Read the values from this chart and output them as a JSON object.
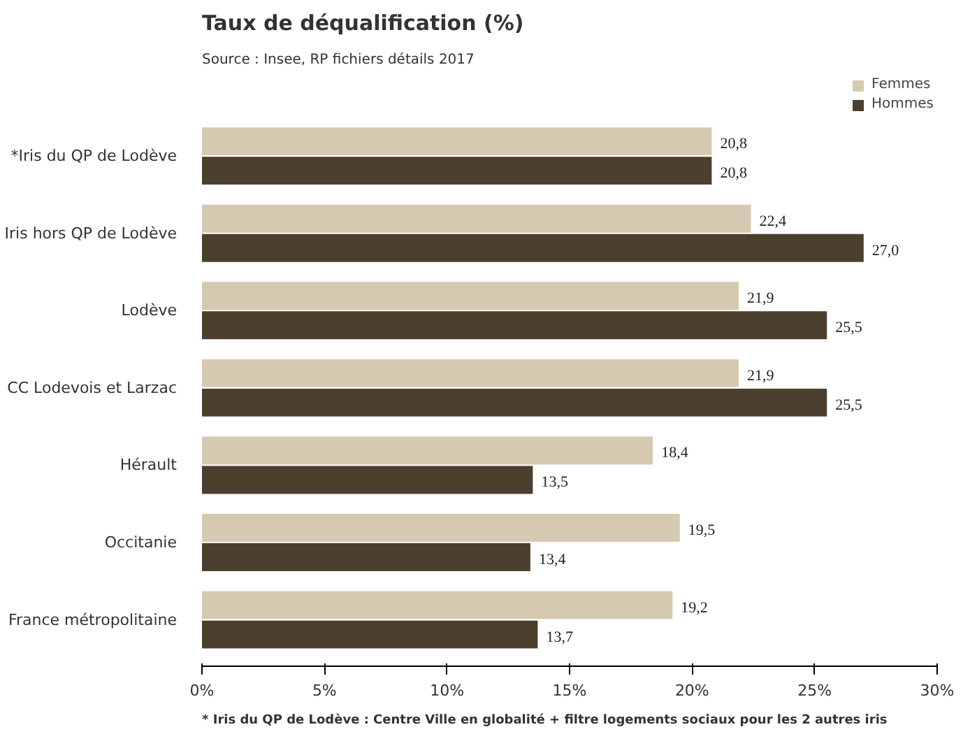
{
  "chart_data": {
    "type": "bar",
    "orientation": "horizontal",
    "title": "Taux de déqualification (%)",
    "subtitle": "Source : Insee, RP fichiers détails 2017",
    "categories": [
      "*Iris du QP de Lodève",
      "Iris hors QP de Lodève",
      "Lodève",
      "CC Lodevois et Larzac",
      "Hérault",
      "Occitanie",
      "France métropolitaine"
    ],
    "series": [
      {
        "name": "Femmes",
        "color": "#d6c9b2",
        "values": [
          20.8,
          22.4,
          21.9,
          21.9,
          18.4,
          19.5,
          19.2
        ],
        "value_labels": [
          "20,8",
          "22,4",
          "21,9",
          "21,9",
          "18,4",
          "19,5",
          "19,2"
        ]
      },
      {
        "name": "Hommes",
        "color": "#4b3f2d",
        "values": [
          20.8,
          27.0,
          25.5,
          25.5,
          13.5,
          13.4,
          13.7
        ],
        "value_labels": [
          "20,8",
          "27,0",
          "25,5",
          "25,5",
          "13,5",
          "13,4",
          "13,7"
        ]
      }
    ],
    "xlim": [
      0,
      30
    ],
    "xticks": [
      {
        "value": 0,
        "label": "0%"
      },
      {
        "value": 5,
        "label": "5%"
      },
      {
        "value": 10,
        "label": "10%"
      },
      {
        "value": 15,
        "label": "15%"
      },
      {
        "value": 20,
        "label": "20%"
      },
      {
        "value": 25,
        "label": "25%"
      },
      {
        "value": 30,
        "label": "30%"
      }
    ],
    "grid": false,
    "legend": "top right",
    "annotations": [
      "* Iris du QP de Lodève : Centre Ville en globalité + filtre logements sociaux pour les 2 autres iris"
    ]
  }
}
